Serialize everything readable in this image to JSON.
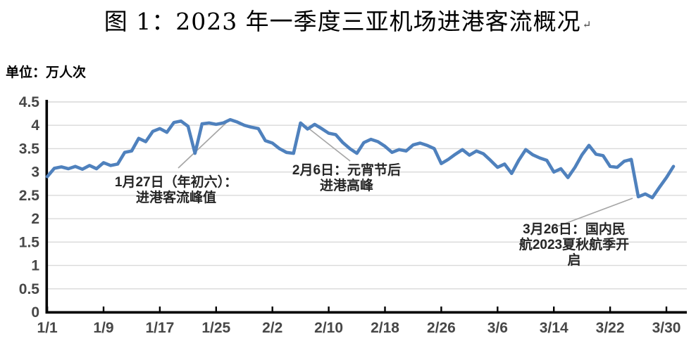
{
  "title": "图 1：2023 年一季度三亚机场进港客流概况",
  "title_mark": "↵",
  "unit_label": "单位：万人次",
  "chart_data": {
    "type": "line",
    "title": "2023 年一季度三亚机场进港客流概况",
    "unit": "万人次",
    "xlabel": "",
    "ylabel": "单位：万人次",
    "ylim": [
      0,
      4.5
    ],
    "y_tick_step": 0.5,
    "grid": true,
    "legend": false,
    "y_ticks": [
      "4.5",
      "4",
      "3.5",
      "3",
      "2.5",
      "2",
      "1.5",
      "1",
      "0.5",
      "0"
    ],
    "x_tick_labels": [
      "1/1",
      "1/9",
      "1/17",
      "1/25",
      "2/2",
      "2/10",
      "2/18",
      "2/26",
      "3/6",
      "3/14",
      "3/22",
      "3/30"
    ],
    "x_tick_days": [
      1,
      9,
      17,
      25,
      33,
      41,
      49,
      57,
      65,
      73,
      81,
      89
    ],
    "n_points": 90,
    "x_range_dates": [
      "1/1",
      "3/31"
    ],
    "series": [
      {
        "name": "三亚机场进港客流",
        "color": "#4f81bd",
        "values": [
          2.9,
          3.08,
          3.11,
          3.07,
          3.12,
          3.06,
          3.14,
          3.07,
          3.2,
          3.14,
          3.17,
          3.42,
          3.45,
          3.72,
          3.65,
          3.87,
          3.93,
          3.85,
          4.06,
          4.09,
          3.98,
          3.4,
          4.03,
          4.05,
          4.02,
          4.05,
          4.12,
          4.07,
          4.0,
          3.96,
          3.93,
          3.67,
          3.62,
          3.5,
          3.42,
          3.4,
          4.05,
          3.92,
          4.02,
          3.93,
          3.83,
          3.8,
          3.63,
          3.5,
          3.4,
          3.63,
          3.7,
          3.65,
          3.55,
          3.42,
          3.48,
          3.45,
          3.58,
          3.62,
          3.57,
          3.5,
          3.18,
          3.27,
          3.38,
          3.48,
          3.36,
          3.45,
          3.39,
          3.25,
          3.1,
          3.17,
          2.97,
          3.25,
          3.48,
          3.37,
          3.3,
          3.25,
          3.0,
          3.07,
          2.88,
          3.1,
          3.37,
          3.57,
          3.38,
          3.35,
          3.12,
          3.1,
          3.23,
          3.27,
          2.47,
          2.53,
          2.45,
          2.67,
          2.88,
          3.12
        ]
      }
    ],
    "annotations": [
      {
        "text": "1月27日（年初六）：\n进港客流峰值",
        "date": "1/27",
        "value": 4.12
      },
      {
        "text": "2月6日：元宵节后\n进港高峰",
        "date": "2/6",
        "value": 4.05
      },
      {
        "text": "3月26日：国内民\n航2023夏秋航季开\n启",
        "date": "3/26",
        "value": 2.47
      }
    ]
  }
}
